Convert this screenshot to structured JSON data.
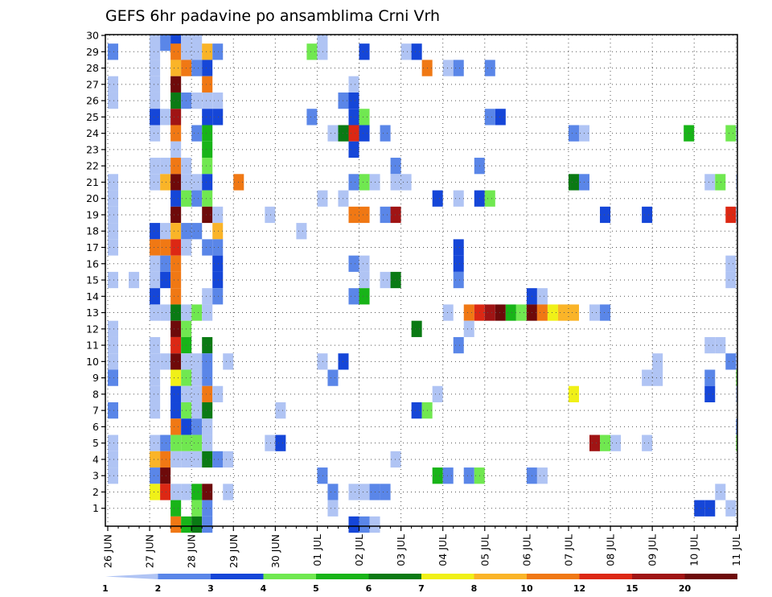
{
  "chart_data": {
    "type": "heatmap",
    "title": "GEFS 6hr padavine po ansamblima Crni Vrh",
    "xlabel": "",
    "ylabel": "",
    "x_tick_labels": [
      "26 JUN",
      "27 JUN",
      "28 JUN",
      "29 JUN",
      "30 JUN",
      "01 JUL",
      "02 JUL",
      "03 JUL",
      "04 JUL",
      "05 JUL",
      "06 JUL",
      "07 JUL",
      "08 JUL",
      "09 JUL",
      "10 JUL",
      "11 JUL"
    ],
    "y_tick_labels": [
      "1",
      "2",
      "3",
      "4",
      "5",
      "6",
      "7",
      "8",
      "9",
      "10",
      "11",
      "12",
      "13",
      "14",
      "15",
      "16",
      "17",
      "18",
      "19",
      "20",
      "21",
      "22",
      "23",
      "24",
      "25",
      "26",
      "27",
      "28",
      "29",
      "30"
    ],
    "x_range_days": [
      0,
      15
    ],
    "steps_per_day": 4,
    "y_range": [
      0,
      30
    ],
    "grid": "dotted",
    "colorbar": {
      "position": "bottom",
      "tick_labels": [
        "1",
        "2",
        "3",
        "4",
        "5",
        "6",
        "7",
        "8",
        "10",
        "12",
        "15",
        "20"
      ],
      "colors": [
        "#b0c4f4",
        "#5a86e8",
        "#1546d8",
        "#70e850",
        "#18b418",
        "#0a7a14",
        "#f0f018",
        "#fab428",
        "#f07814",
        "#dc2814",
        "#a01414",
        "#6e0a0a"
      ]
    },
    "cells": [
      [
        30,
        4,
        1
      ],
      [
        30,
        5,
        2
      ],
      [
        30,
        6,
        3
      ],
      [
        30,
        7,
        1
      ],
      [
        30,
        8,
        1
      ],
      [
        30,
        20,
        1
      ],
      [
        29,
        0,
        2
      ],
      [
        29,
        4,
        1
      ],
      [
        29,
        6,
        9
      ],
      [
        29,
        7,
        1
      ],
      [
        29,
        8,
        1
      ],
      [
        29,
        9,
        8
      ],
      [
        29,
        10,
        2
      ],
      [
        29,
        19,
        4
      ],
      [
        29,
        20,
        1
      ],
      [
        29,
        24,
        3
      ],
      [
        29,
        28,
        1
      ],
      [
        29,
        29,
        3
      ],
      [
        28,
        4,
        1
      ],
      [
        28,
        6,
        8
      ],
      [
        28,
        7,
        9
      ],
      [
        28,
        8,
        2
      ],
      [
        28,
        9,
        3
      ],
      [
        28,
        30,
        9
      ],
      [
        28,
        32,
        1
      ],
      [
        28,
        33,
        2
      ],
      [
        28,
        36,
        2
      ],
      [
        27,
        0,
        1
      ],
      [
        27,
        4,
        1
      ],
      [
        27,
        6,
        12
      ],
      [
        27,
        9,
        9
      ],
      [
        27,
        23,
        1
      ],
      [
        26,
        0,
        1
      ],
      [
        26,
        4,
        1
      ],
      [
        26,
        6,
        6
      ],
      [
        26,
        7,
        2
      ],
      [
        26,
        8,
        1
      ],
      [
        26,
        9,
        1
      ],
      [
        26,
        10,
        1
      ],
      [
        26,
        22,
        2
      ],
      [
        26,
        23,
        3
      ],
      [
        25,
        4,
        3
      ],
      [
        25,
        5,
        1
      ],
      [
        25,
        6,
        11
      ],
      [
        25,
        9,
        3
      ],
      [
        25,
        10,
        3
      ],
      [
        25,
        19,
        2
      ],
      [
        25,
        23,
        3
      ],
      [
        25,
        24,
        4
      ],
      [
        25,
        36,
        2
      ],
      [
        25,
        37,
        3
      ],
      [
        24,
        4,
        1
      ],
      [
        24,
        6,
        9
      ],
      [
        24,
        8,
        2
      ],
      [
        24,
        9,
        5
      ],
      [
        24,
        21,
        1
      ],
      [
        24,
        22,
        6
      ],
      [
        24,
        23,
        10
      ],
      [
        24,
        24,
        3
      ],
      [
        24,
        26,
        2
      ],
      [
        24,
        44,
        2
      ],
      [
        24,
        45,
        1
      ],
      [
        24,
        55,
        5
      ],
      [
        24,
        59,
        4
      ],
      [
        24,
        60,
        1
      ],
      [
        23,
        6,
        1
      ],
      [
        23,
        9,
        5
      ],
      [
        23,
        23,
        3
      ],
      [
        22,
        4,
        1
      ],
      [
        22,
        5,
        1
      ],
      [
        22,
        6,
        9
      ],
      [
        22,
        7,
        1
      ],
      [
        22,
        9,
        4
      ],
      [
        22,
        27,
        2
      ],
      [
        22,
        35,
        2
      ],
      [
        21,
        0,
        1
      ],
      [
        21,
        4,
        1
      ],
      [
        21,
        5,
        8
      ],
      [
        21,
        6,
        12
      ],
      [
        21,
        7,
        1
      ],
      [
        21,
        8,
        1
      ],
      [
        21,
        9,
        3
      ],
      [
        21,
        12,
        9
      ],
      [
        21,
        23,
        2
      ],
      [
        21,
        24,
        4
      ],
      [
        21,
        25,
        1
      ],
      [
        21,
        27,
        1
      ],
      [
        21,
        28,
        1
      ],
      [
        21,
        44,
        6
      ],
      [
        21,
        45,
        2
      ],
      [
        21,
        57,
        1
      ],
      [
        21,
        58,
        4
      ],
      [
        21,
        60,
        1
      ],
      [
        20,
        0,
        1
      ],
      [
        20,
        6,
        3
      ],
      [
        20,
        7,
        4
      ],
      [
        20,
        8,
        2
      ],
      [
        20,
        9,
        4
      ],
      [
        20,
        20,
        1
      ],
      [
        20,
        22,
        1
      ],
      [
        20,
        31,
        3
      ],
      [
        20,
        33,
        1
      ],
      [
        20,
        35,
        3
      ],
      [
        20,
        36,
        4
      ],
      [
        19,
        0,
        1
      ],
      [
        19,
        6,
        12
      ],
      [
        19,
        9,
        12
      ],
      [
        19,
        10,
        1
      ],
      [
        19,
        15,
        1
      ],
      [
        19,
        23,
        9
      ],
      [
        19,
        24,
        9
      ],
      [
        19,
        26,
        2
      ],
      [
        19,
        27,
        11
      ],
      [
        19,
        47,
        3
      ],
      [
        19,
        51,
        3
      ],
      [
        19,
        59,
        10
      ],
      [
        19,
        60,
        1
      ],
      [
        18,
        0,
        1
      ],
      [
        18,
        4,
        3
      ],
      [
        18,
        5,
        1
      ],
      [
        18,
        6,
        8
      ],
      [
        18,
        7,
        2
      ],
      [
        18,
        8,
        2
      ],
      [
        18,
        10,
        8
      ],
      [
        18,
        18,
        1
      ],
      [
        17,
        0,
        1
      ],
      [
        17,
        4,
        9
      ],
      [
        17,
        5,
        9
      ],
      [
        17,
        6,
        10
      ],
      [
        17,
        7,
        1
      ],
      [
        17,
        9,
        2
      ],
      [
        17,
        10,
        2
      ],
      [
        17,
        33,
        3
      ],
      [
        16,
        4,
        1
      ],
      [
        16,
        5,
        2
      ],
      [
        16,
        6,
        9
      ],
      [
        16,
        10,
        3
      ],
      [
        16,
        23,
        2
      ],
      [
        16,
        24,
        1
      ],
      [
        16,
        33,
        3
      ],
      [
        16,
        59,
        1
      ],
      [
        15,
        0,
        1
      ],
      [
        15,
        2,
        1
      ],
      [
        15,
        4,
        1
      ],
      [
        15,
        5,
        3
      ],
      [
        15,
        6,
        9
      ],
      [
        15,
        10,
        3
      ],
      [
        15,
        24,
        1
      ],
      [
        15,
        26,
        1
      ],
      [
        15,
        27,
        6
      ],
      [
        15,
        33,
        2
      ],
      [
        15,
        59,
        1
      ],
      [
        14,
        4,
        3
      ],
      [
        14,
        6,
        9
      ],
      [
        14,
        9,
        1
      ],
      [
        14,
        10,
        2
      ],
      [
        14,
        23,
        2
      ],
      [
        14,
        24,
        5
      ],
      [
        14,
        40,
        3
      ],
      [
        14,
        41,
        1
      ],
      [
        13,
        4,
        1
      ],
      [
        13,
        5,
        1
      ],
      [
        13,
        6,
        6
      ],
      [
        13,
        7,
        1
      ],
      [
        13,
        8,
        4
      ],
      [
        13,
        9,
        1
      ],
      [
        13,
        32,
        1
      ],
      [
        13,
        34,
        9
      ],
      [
        13,
        35,
        10
      ],
      [
        13,
        36,
        11
      ],
      [
        13,
        37,
        12
      ],
      [
        13,
        38,
        5
      ],
      [
        13,
        39,
        4
      ],
      [
        13,
        40,
        12
      ],
      [
        13,
        41,
        9
      ],
      [
        13,
        42,
        7
      ],
      [
        13,
        43,
        8
      ],
      [
        13,
        44,
        8
      ],
      [
        13,
        46,
        1
      ],
      [
        13,
        47,
        2
      ],
      [
        12,
        0,
        1
      ],
      [
        12,
        6,
        12
      ],
      [
        12,
        7,
        4
      ],
      [
        12,
        29,
        6
      ],
      [
        12,
        34,
        1
      ],
      [
        11,
        0,
        1
      ],
      [
        11,
        4,
        1
      ],
      [
        11,
        6,
        10
      ],
      [
        11,
        7,
        5
      ],
      [
        11,
        9,
        6
      ],
      [
        11,
        33,
        2
      ],
      [
        11,
        57,
        1
      ],
      [
        11,
        58,
        1
      ],
      [
        10,
        0,
        1
      ],
      [
        10,
        4,
        1
      ],
      [
        10,
        5,
        1
      ],
      [
        10,
        6,
        12
      ],
      [
        10,
        7,
        1
      ],
      [
        10,
        8,
        1
      ],
      [
        10,
        9,
        2
      ],
      [
        10,
        11,
        1
      ],
      [
        10,
        20,
        1
      ],
      [
        10,
        22,
        3
      ],
      [
        10,
        52,
        1
      ],
      [
        10,
        59,
        2
      ],
      [
        10,
        60,
        1
      ],
      [
        9,
        0,
        2
      ],
      [
        9,
        4,
        1
      ],
      [
        9,
        6,
        7
      ],
      [
        9,
        7,
        4
      ],
      [
        9,
        8,
        1
      ],
      [
        9,
        9,
        2
      ],
      [
        9,
        21,
        2
      ],
      [
        9,
        51,
        1
      ],
      [
        9,
        52,
        1
      ],
      [
        9,
        57,
        2
      ],
      [
        9,
        60,
        4
      ],
      [
        8,
        4,
        1
      ],
      [
        8,
        6,
        3
      ],
      [
        8,
        7,
        1
      ],
      [
        8,
        8,
        1
      ],
      [
        8,
        9,
        9
      ],
      [
        8,
        10,
        1
      ],
      [
        8,
        31,
        1
      ],
      [
        8,
        44,
        7
      ],
      [
        8,
        57,
        3
      ],
      [
        8,
        60,
        1
      ],
      [
        7,
        0,
        2
      ],
      [
        7,
        4,
        1
      ],
      [
        7,
        6,
        3
      ],
      [
        7,
        7,
        4
      ],
      [
        7,
        8,
        1
      ],
      [
        7,
        9,
        6
      ],
      [
        7,
        16,
        1
      ],
      [
        7,
        29,
        3
      ],
      [
        7,
        30,
        4
      ],
      [
        6,
        6,
        9
      ],
      [
        6,
        7,
        3
      ],
      [
        6,
        8,
        2
      ],
      [
        6,
        9,
        1
      ],
      [
        6,
        60,
        2
      ],
      [
        5,
        0,
        1
      ],
      [
        5,
        4,
        1
      ],
      [
        5,
        5,
        2
      ],
      [
        5,
        6,
        4
      ],
      [
        5,
        7,
        4
      ],
      [
        5,
        8,
        4
      ],
      [
        5,
        9,
        1
      ],
      [
        5,
        15,
        1
      ],
      [
        5,
        16,
        3
      ],
      [
        5,
        46,
        11
      ],
      [
        5,
        47,
        4
      ],
      [
        5,
        48,
        1
      ],
      [
        5,
        51,
        1
      ],
      [
        5,
        60,
        4
      ],
      [
        4,
        0,
        1
      ],
      [
        4,
        4,
        8
      ],
      [
        4,
        5,
        9
      ],
      [
        4,
        6,
        1
      ],
      [
        4,
        7,
        1
      ],
      [
        4,
        8,
        1
      ],
      [
        4,
        9,
        6
      ],
      [
        4,
        10,
        2
      ],
      [
        4,
        11,
        1
      ],
      [
        4,
        27,
        1
      ],
      [
        3,
        0,
        1
      ],
      [
        3,
        4,
        2
      ],
      [
        3,
        5,
        12
      ],
      [
        3,
        20,
        2
      ],
      [
        3,
        31,
        5
      ],
      [
        3,
        32,
        2
      ],
      [
        3,
        34,
        2
      ],
      [
        3,
        35,
        4
      ],
      [
        3,
        40,
        2
      ],
      [
        3,
        41,
        1
      ],
      [
        2,
        4,
        7
      ],
      [
        2,
        5,
        10
      ],
      [
        2,
        6,
        1
      ],
      [
        2,
        7,
        1
      ],
      [
        2,
        8,
        5
      ],
      [
        2,
        9,
        12
      ],
      [
        2,
        11,
        1
      ],
      [
        2,
        21,
        2
      ],
      [
        2,
        23,
        1
      ],
      [
        2,
        24,
        1
      ],
      [
        2,
        25,
        2
      ],
      [
        2,
        26,
        2
      ],
      [
        2,
        58,
        1
      ],
      [
        1,
        6,
        5
      ],
      [
        1,
        8,
        4
      ],
      [
        1,
        9,
        2
      ],
      [
        1,
        21,
        1
      ],
      [
        1,
        56,
        3
      ],
      [
        1,
        57,
        3
      ],
      [
        1,
        59,
        1
      ],
      [
        0,
        6,
        9
      ],
      [
        0,
        7,
        5
      ],
      [
        0,
        8,
        6
      ],
      [
        0,
        9,
        2
      ],
      [
        0,
        23,
        3
      ],
      [
        0,
        24,
        2
      ],
      [
        0,
        25,
        1
      ]
    ]
  }
}
